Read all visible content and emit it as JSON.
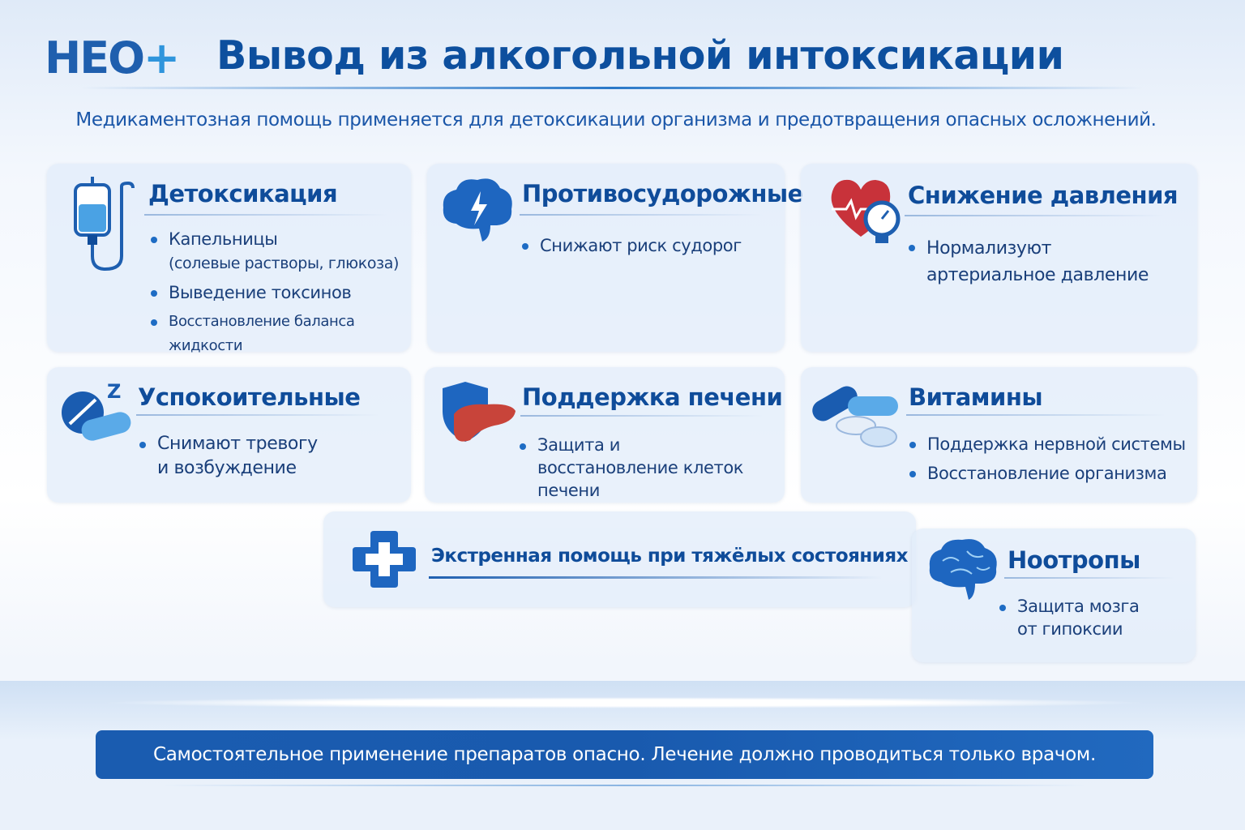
{
  "header": {
    "logo": "НЕО+",
    "logo_main": "НЕО",
    "logo_plus": "+",
    "title": "Вывод из алкогольной интоксикации",
    "subtitle": "Медикаментозная помощь применяется для детоксикации организма и предотвращения опасных осложнений."
  },
  "cards": [
    {
      "title": "Детоксикация",
      "icon": "iv-drip-icon",
      "items": [
        {
          "text": "Капельницы",
          "sub": "(солевые растворы, глюкоза)"
        },
        {
          "text": "Выведение токсинов"
        },
        {
          "text": "Восстановление баланса жидкости"
        }
      ]
    },
    {
      "title": "Противосудорожные",
      "icon": "brain-lightning-icon",
      "items": [
        {
          "text": "Снижают риск судорог"
        }
      ]
    },
    {
      "title": "Снижение давления",
      "icon": "heart-gauge-icon",
      "items": [
        {
          "text": "Нормализуют артериальное давление"
        }
      ]
    },
    {
      "title": "Успокоительные",
      "icon": "sleep-pills-icon",
      "items": [
        {
          "text": "Снимают тревогу и возбуждение"
        }
      ]
    },
    {
      "title": "Поддержка печени",
      "icon": "liver-shield-icon",
      "items": [
        {
          "text": "Защита и восстановление клеток печени"
        }
      ]
    },
    {
      "title": "Витамины",
      "icon": "capsules-icon",
      "items": [
        {
          "text": "Поддержка нервной системы"
        },
        {
          "text": "Восстановление организма"
        }
      ]
    },
    {
      "title": "Экстренная помощь при тяжёлых состояниях",
      "icon": "medical-cross-icon",
      "items": []
    },
    {
      "title": "Ноотропы",
      "icon": "brain-icon",
      "items": [
        {
          "text": "Защита мозга от гипоксии"
        }
      ]
    }
  ],
  "footer": {
    "warning": "Самостоятельное применение препаратов опасно. Лечение должно проводиться только врачом."
  },
  "colors": {
    "primary": "#0d4f9e",
    "accent": "#2f95dc",
    "warning_bg": "#1a5cb0",
    "heart": "#c8323a"
  }
}
